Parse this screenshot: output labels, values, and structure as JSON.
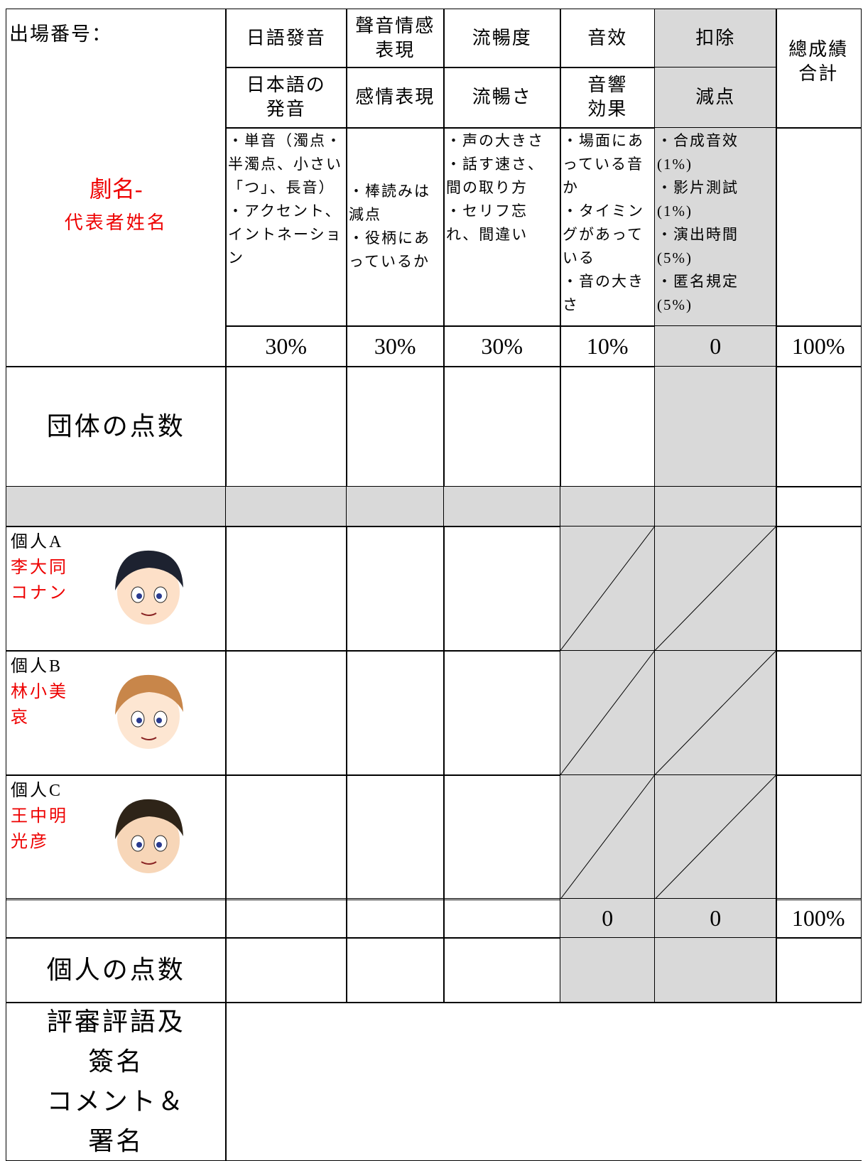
{
  "table": {
    "corner": {
      "label": "出場番号：",
      "drama": "劇名-",
      "representative": "代表者姓名"
    },
    "columns": [
      {
        "zh": "日語發音",
        "ja": "日本語の\n発音",
        "criteria": [
          "・単音（濁点・半濁点、小さい「つ」、長音）",
          "・アクセント、イントネーション"
        ],
        "weight": "30%"
      },
      {
        "zh": "聲音情感\n表現",
        "ja": "感情表現",
        "criteria": [
          "・棒読みは減点",
          "・役柄にあっているか"
        ],
        "weight": "30%"
      },
      {
        "zh": "流暢度",
        "ja": "流暢さ",
        "criteria": [
          "・声の大きさ",
          "・話す速さ、間の取り方",
          "・セリフ忘れ、間違い"
        ],
        "weight": "30%"
      },
      {
        "zh": "音效",
        "ja": "音響\n効果",
        "criteria": [
          "・場面にあっている音か",
          "・タイミングがあっている",
          "・音の大きさ"
        ],
        "weight": "10%"
      },
      {
        "zh": "扣除",
        "ja": "減点",
        "criteria": [
          "・合成音效(1%)",
          "・影片測試(1%)",
          "・演出時間(5%)",
          "・匿名規定(5%)"
        ],
        "weight": "0"
      }
    ],
    "total": {
      "label": "總成績\n合計",
      "weight": "100%"
    },
    "group_label": "団体の点数",
    "individuals": [
      {
        "label": "個人A",
        "name": "李大同",
        "role": "コナン"
      },
      {
        "label": "個人B",
        "name": "林小美",
        "role": "哀"
      },
      {
        "label": "個人C",
        "name": "王中明",
        "role": "光彦"
      }
    ],
    "subtotal": {
      "sound": "0",
      "deduction": "0",
      "total": "100%"
    },
    "individual_label": "個人の点数",
    "comment_label": "評審評語及\n簽名\nコメント＆\n署名"
  }
}
